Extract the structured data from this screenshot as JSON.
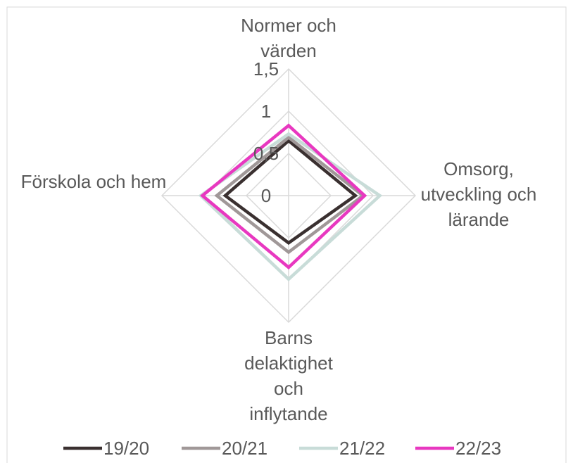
{
  "chart_data": {
    "type": "radar",
    "categories": [
      "Normer och värden",
      "Omsorg, utveckling och lärande",
      "Barns delaktighet och inflytande",
      "Förskola och hem"
    ],
    "ylim": [
      0,
      1.5
    ],
    "yticks": [
      0,
      {
        "value": 0.5,
        "label": "0,5"
      },
      1,
      {
        "value": 1.5,
        "label": "1,5"
      }
    ],
    "grid": true,
    "legend": "bottom",
    "series": [
      {
        "name": "19/20",
        "color": "#3a3030",
        "values": [
          0.65,
          0.79,
          0.56,
          0.75
        ]
      },
      {
        "name": "20/21",
        "color": "#a09898",
        "values": [
          0.69,
          0.88,
          0.67,
          0.85
        ]
      },
      {
        "name": "21/22",
        "color": "#c8dcd8",
        "values": [
          0.73,
          1.08,
          0.99,
          1.04
        ]
      },
      {
        "name": "22/23",
        "color": "#e838c0",
        "values": [
          0.83,
          0.9,
          0.85,
          1.02
        ]
      }
    ]
  }
}
